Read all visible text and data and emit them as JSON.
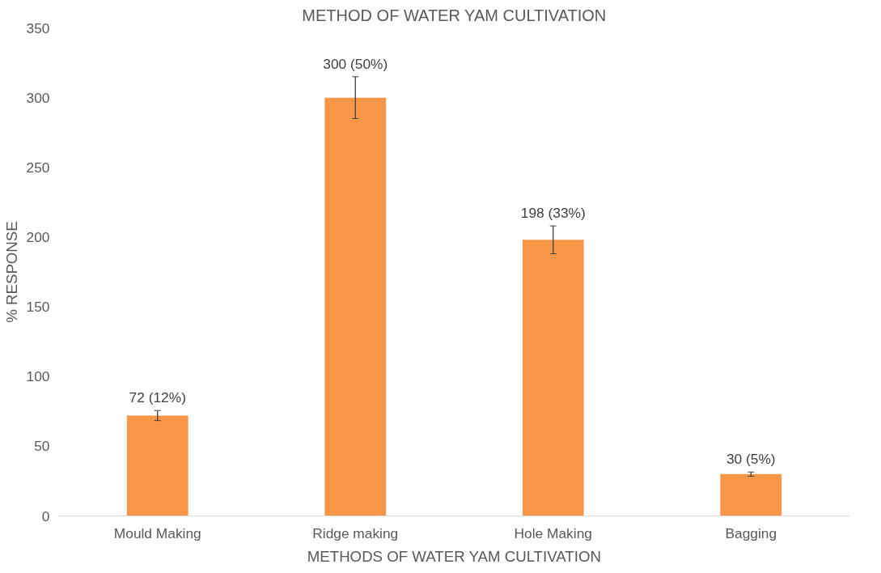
{
  "chart_data": {
    "type": "bar",
    "title": "METHOD OF WATER YAM CULTIVATION",
    "xlabel": "METHODS OF WATER YAM CULTIVATION",
    "ylabel": "% RESPONSE",
    "categories": [
      "Mould Making",
      "Ridge making",
      "Hole Making",
      "Bagging"
    ],
    "values": [
      72,
      300,
      198,
      30
    ],
    "errors": [
      3.6,
      15,
      10,
      1.5
    ],
    "value_labels": [
      "72 (12%)",
      "300 (50%)",
      "198 (33%)",
      "30 (5%)"
    ],
    "color": "#f79646",
    "ylim": [
      0,
      350
    ],
    "yticks": [
      0,
      50,
      100,
      150,
      200,
      250,
      300,
      350
    ],
    "grid": false
  }
}
